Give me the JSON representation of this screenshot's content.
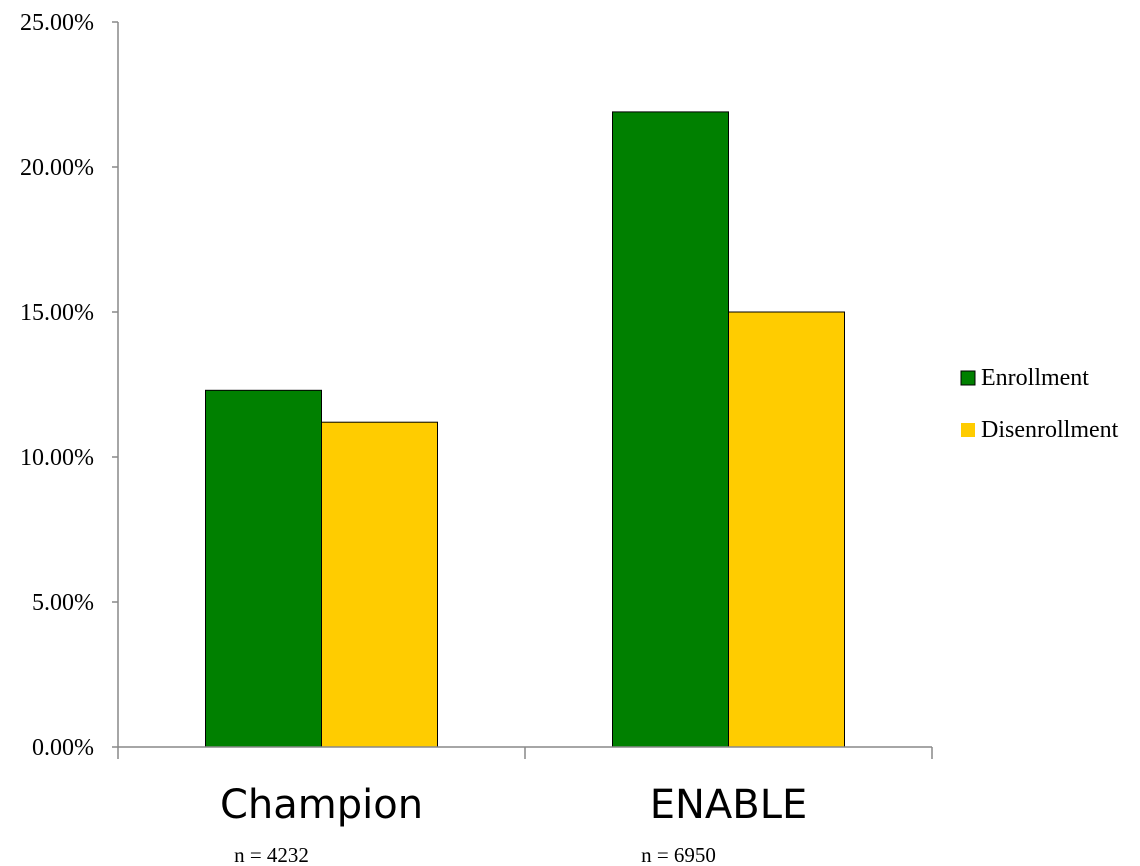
{
  "chart_data": {
    "type": "bar",
    "categories": [
      "Champion",
      "ENABLE"
    ],
    "category_notes": [
      "n = 4232",
      "n = 6950"
    ],
    "series": [
      {
        "name": "Enrollment",
        "values": [
          12.3,
          21.9
        ],
        "color": "#008000"
      },
      {
        "name": "Disenrollment",
        "values": [
          11.2,
          15.0
        ],
        "color": "#ffcc00"
      }
    ],
    "ylim": [
      0,
      25
    ],
    "yticks": [
      0,
      5,
      10,
      15,
      20,
      25
    ],
    "ytick_labels": [
      "0.00%",
      "5.00%",
      "10.00%",
      "15.00%",
      "20.00%",
      "25.00%"
    ],
    "title": "",
    "xlabel": "",
    "ylabel": "",
    "grid": false,
    "legend_position": "right"
  }
}
